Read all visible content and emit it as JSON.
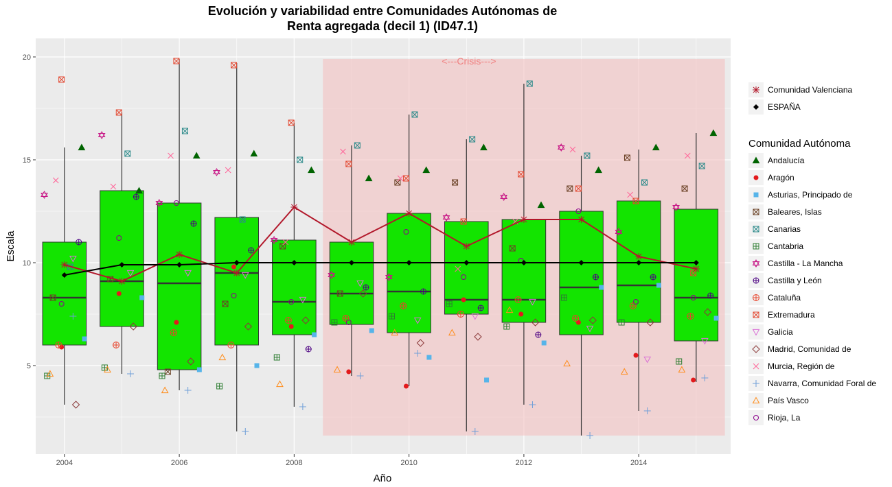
{
  "chart_data": {
    "type": "box",
    "title_line1": "Evolución y variabilidad entre Comunidades Autónomas de",
    "title_line2": "Renta agregada (decil 1) (ID47.1)",
    "xlabel": "Año",
    "ylabel": "Escala",
    "xlim": [
      2003.5,
      2015.6
    ],
    "ylim": [
      0.7,
      20.9
    ],
    "x_ticks": [
      2004,
      2006,
      2008,
      2010,
      2012,
      2014
    ],
    "y_ticks": [
      5,
      10,
      15,
      20
    ],
    "grid": true,
    "panel_color": "#ebebeb",
    "box_fill": "#13e400",
    "crisis": {
      "label": "<---Crisis--->",
      "x_start": 2008.5,
      "x_end": 2015.5,
      "y_min": 1.6,
      "y_max": 19.9,
      "color": "#f4c2c2"
    },
    "boxes": [
      {
        "year": 2004,
        "min": 3.1,
        "q1": 6.0,
        "median": 8.3,
        "q3": 11.0,
        "max": 15.6
      },
      {
        "year": 2005,
        "min": 4.6,
        "q1": 6.9,
        "median": 9.1,
        "q3": 13.5,
        "max": 17.3
      },
      {
        "year": 2006,
        "min": 3.8,
        "q1": 4.8,
        "median": 9.0,
        "q3": 12.9,
        "max": 19.9
      },
      {
        "year": 2007,
        "min": 1.8,
        "q1": 6.0,
        "median": 9.5,
        "q3": 12.2,
        "max": 19.7
      },
      {
        "year": 2008,
        "min": 3.0,
        "q1": 6.5,
        "median": 8.1,
        "q3": 11.1,
        "max": 16.8
      },
      {
        "year": 2009,
        "min": 4.5,
        "q1": 7.0,
        "median": 8.5,
        "q3": 11.0,
        "max": 15.7
      },
      {
        "year": 2010,
        "min": 4.0,
        "q1": 6.6,
        "median": 8.6,
        "q3": 12.4,
        "max": 17.2
      },
      {
        "year": 2011,
        "min": 1.8,
        "q1": 7.5,
        "median": 8.2,
        "q3": 12.0,
        "max": 16.0
      },
      {
        "year": 2012,
        "min": 3.1,
        "q1": 7.1,
        "median": 8.2,
        "q3": 12.1,
        "max": 18.7
      },
      {
        "year": 2013,
        "min": 1.6,
        "q1": 6.5,
        "median": 8.8,
        "q3": 12.5,
        "max": 15.2
      },
      {
        "year": 2014,
        "min": 2.8,
        "q1": 7.1,
        "median": 8.9,
        "q3": 13.0,
        "max": 15.5
      },
      {
        "year": 2015,
        "min": 4.2,
        "q1": 6.2,
        "median": 8.3,
        "q3": 12.6,
        "max": 16.3
      }
    ],
    "lines": [
      {
        "name": "Comunidad Valenciana",
        "color": "#b2182b",
        "marker": "asterisk",
        "x": [
          2004,
          2005,
          2006,
          2007,
          2008,
          2009,
          2010,
          2011,
          2012,
          2013,
          2014,
          2015
        ],
        "y": [
          9.9,
          9.1,
          10.4,
          9.5,
          12.7,
          11.0,
          12.4,
          10.8,
          12.1,
          12.1,
          10.3,
          9.7
        ]
      },
      {
        "name": "ESPAÑA",
        "color": "#000000",
        "marker": "diamond",
        "x": [
          2004,
          2005,
          2006,
          2007,
          2008,
          2009,
          2010,
          2011,
          2012,
          2013,
          2014,
          2015
        ],
        "y": [
          9.4,
          9.9,
          9.9,
          10.0,
          10.0,
          10.0,
          10.0,
          10.0,
          10.0,
          10.0,
          10.0,
          10.0
        ]
      }
    ],
    "legend_title": "Comunidad Autónoma",
    "series": [
      {
        "name": "Andalucía",
        "color": "#006400",
        "marker": "triangle-filled",
        "dx": 0.3,
        "values": [
          15.6,
          13.5,
          15.2,
          15.3,
          14.5,
          14.1,
          14.5,
          15.6,
          12.8,
          14.5,
          15.6,
          16.3
        ]
      },
      {
        "name": "Aragón",
        "color": "#e31a1c",
        "marker": "circle-filled",
        "dx": -0.05,
        "values": [
          5.9,
          8.5,
          7.1,
          9.8,
          6.9,
          4.7,
          4.0,
          8.2,
          7.5,
          7.1,
          5.5,
          4.3
        ]
      },
      {
        "name": "Asturias, Principado de",
        "color": "#56b4e9",
        "marker": "square-filled",
        "dx": 0.35,
        "values": [
          6.3,
          8.3,
          4.8,
          5.0,
          6.5,
          6.7,
          5.4,
          4.3,
          6.1,
          8.8,
          8.9,
          7.3
        ]
      },
      {
        "name": "Baleares, Islas",
        "color": "#6b4226",
        "marker": "square-x",
        "dx": -0.2,
        "values": [
          8.3,
          9.2,
          4.7,
          8.0,
          10.8,
          8.5,
          13.9,
          13.9,
          10.7,
          13.6,
          15.1,
          13.6
        ]
      },
      {
        "name": "Canarias",
        "color": "#2e8b8b",
        "marker": "square-cross",
        "dx": 0.1,
        "values": [
          9.8,
          15.3,
          16.4,
          12.1,
          15.0,
          15.7,
          17.2,
          16.0,
          18.7,
          15.2,
          13.9,
          14.7
        ]
      },
      {
        "name": "Cantabria",
        "color": "#2e7d32",
        "marker": "square-plus",
        "dx": -0.3,
        "values": [
          4.5,
          4.9,
          4.5,
          4.0,
          5.4,
          7.1,
          7.4,
          8.0,
          6.9,
          8.3,
          7.1,
          5.2
        ]
      },
      {
        "name": "Castilla - La Mancha",
        "color": "#c71585",
        "marker": "star-david",
        "dx": -0.35,
        "values": [
          13.3,
          16.2,
          12.9,
          14.4,
          11.1,
          9.4,
          9.3,
          12.2,
          13.2,
          15.6,
          11.5,
          12.7
        ]
      },
      {
        "name": "Castilla y León",
        "color": "#4b0082",
        "marker": "circle-plus",
        "dx": 0.25,
        "values": [
          11.0,
          13.2,
          11.9,
          10.6,
          5.8,
          8.8,
          8.6,
          7.8,
          6.5,
          9.3,
          9.3,
          8.4
        ]
      },
      {
        "name": "Cataluña",
        "color": "#e8432a",
        "marker": "circle-cross",
        "dx": -0.1,
        "values": [
          6.0,
          6.0,
          6.6,
          6.0,
          7.2,
          7.3,
          7.9,
          7.5,
          8.2,
          7.3,
          7.9,
          7.4
        ]
      },
      {
        "name": "Extremadura",
        "color": "#e34a33",
        "marker": "square-x",
        "dx": -0.05,
        "values": [
          18.9,
          17.3,
          19.8,
          19.6,
          16.8,
          14.8,
          14.1,
          12.0,
          14.3,
          13.6,
          13.0,
          9.5
        ]
      },
      {
        "name": "Galicia",
        "color": "#da70d6",
        "marker": "triangle-down",
        "dx": 0.15,
        "values": [
          10.2,
          9.5,
          9.5,
          9.4,
          8.2,
          9.0,
          7.2,
          7.4,
          8.1,
          6.8,
          5.3,
          6.2
        ]
      },
      {
        "name": "Madrid, Comunidad de",
        "color": "#8b3a3a",
        "marker": "diamond-open",
        "dx": 0.2,
        "values": [
          3.1,
          6.9,
          5.2,
          6.9,
          7.2,
          8.5,
          6.1,
          6.4,
          7.1,
          7.2,
          7.1,
          7.6
        ]
      },
      {
        "name": "Murcia, Región de",
        "color": "#ff6699",
        "marker": "x",
        "dx": -0.15,
        "values": [
          14.0,
          13.7,
          15.2,
          14.5,
          11.0,
          15.4,
          14.1,
          9.7,
          12.0,
          15.5,
          13.3,
          15.2
        ]
      },
      {
        "name": "Navarra, Comunidad Foral de",
        "color": "#6f9fd8",
        "marker": "plus",
        "dx": 0.15,
        "values": [
          7.4,
          4.6,
          3.8,
          1.8,
          3.0,
          4.5,
          5.6,
          1.8,
          3.1,
          1.6,
          2.8,
          4.4
        ]
      },
      {
        "name": "País Vasco",
        "color": "#ff8c1a",
        "marker": "triangle-open",
        "dx": -0.25,
        "values": [
          4.6,
          4.8,
          3.8,
          5.4,
          4.1,
          4.8,
          6.6,
          6.6,
          7.7,
          5.1,
          4.7,
          4.8
        ]
      },
      {
        "name": "Rioja, La",
        "color": "#8b008b",
        "marker": "circle-open",
        "dx": -0.05,
        "values": [
          8.0,
          11.2,
          12.9,
          8.4,
          8.1,
          7.1,
          11.5,
          9.3,
          10.1,
          12.5,
          8.1,
          8.3
        ]
      }
    ]
  }
}
